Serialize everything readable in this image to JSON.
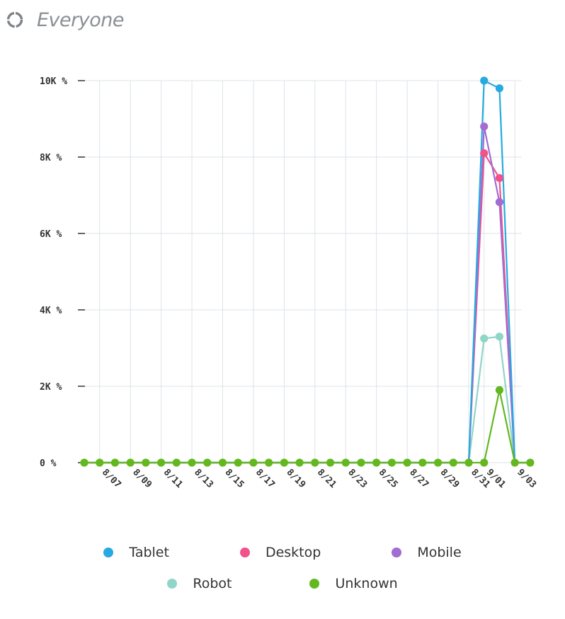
{
  "header": {
    "title": "Everyone",
    "icon": "loading-ring-icon"
  },
  "colors": {
    "Tablet": "#27aae1",
    "Desktop": "#f0538b",
    "Mobile": "#a26cd1",
    "Robot": "#8fd5c8",
    "Unknown": "#63b81e",
    "grid": "#dde3e8",
    "axis": "#333333"
  },
  "chart_data": {
    "type": "line",
    "title": "",
    "xlabel": "",
    "ylabel": "",
    "ylim": [
      0,
      10000
    ],
    "y_ticks": [
      0,
      2000,
      4000,
      6000,
      8000,
      10000
    ],
    "y_tick_labels": [
      "0 %",
      "2K %",
      "4K %",
      "6K %",
      "8K %",
      "10K %"
    ],
    "x_tick_labels": [
      "8/07",
      "8/09",
      "8/11",
      "8/13",
      "8/15",
      "8/17",
      "8/19",
      "8/21",
      "8/23",
      "8/25",
      "8/27",
      "8/29",
      "8/31",
      "9/01",
      "9/03"
    ],
    "x": [
      "8/06",
      "8/07",
      "8/08",
      "8/09",
      "8/10",
      "8/11",
      "8/12",
      "8/13",
      "8/14",
      "8/15",
      "8/16",
      "8/17",
      "8/18",
      "8/19",
      "8/20",
      "8/21",
      "8/22",
      "8/23",
      "8/24",
      "8/25",
      "8/26",
      "8/27",
      "8/28",
      "8/29",
      "8/30",
      "8/31",
      "9/01",
      "9/02",
      "9/03",
      "9/04"
    ],
    "grid": true,
    "legend_position": "bottom",
    "series": [
      {
        "name": "Tablet",
        "values": [
          0,
          0,
          0,
          0,
          0,
          0,
          0,
          0,
          0,
          0,
          0,
          0,
          0,
          0,
          0,
          0,
          0,
          0,
          0,
          0,
          0,
          0,
          0,
          0,
          0,
          0,
          10000,
          9800,
          0,
          0
        ]
      },
      {
        "name": "Desktop",
        "values": [
          0,
          0,
          0,
          0,
          0,
          0,
          0,
          0,
          0,
          0,
          0,
          0,
          0,
          0,
          0,
          0,
          0,
          0,
          0,
          0,
          0,
          0,
          0,
          0,
          0,
          0,
          8100,
          7450,
          0,
          0
        ]
      },
      {
        "name": "Mobile",
        "values": [
          0,
          0,
          0,
          0,
          0,
          0,
          0,
          0,
          0,
          0,
          0,
          0,
          0,
          0,
          0,
          0,
          0,
          0,
          0,
          0,
          0,
          0,
          0,
          0,
          0,
          0,
          8800,
          6820,
          0,
          0
        ]
      },
      {
        "name": "Robot",
        "values": [
          0,
          0,
          0,
          0,
          0,
          0,
          0,
          0,
          0,
          0,
          0,
          0,
          0,
          0,
          0,
          0,
          0,
          0,
          0,
          0,
          0,
          0,
          0,
          0,
          0,
          0,
          3250,
          3300,
          0,
          0
        ]
      },
      {
        "name": "Unknown",
        "values": [
          0,
          0,
          0,
          0,
          0,
          0,
          0,
          0,
          0,
          0,
          0,
          0,
          0,
          0,
          0,
          0,
          0,
          0,
          0,
          0,
          0,
          0,
          0,
          0,
          0,
          0,
          0,
          1900,
          0,
          0
        ]
      }
    ]
  },
  "legend": {
    "rows": [
      [
        "Tablet",
        "Desktop",
        "Mobile"
      ],
      [
        "Robot",
        "Unknown"
      ]
    ]
  }
}
